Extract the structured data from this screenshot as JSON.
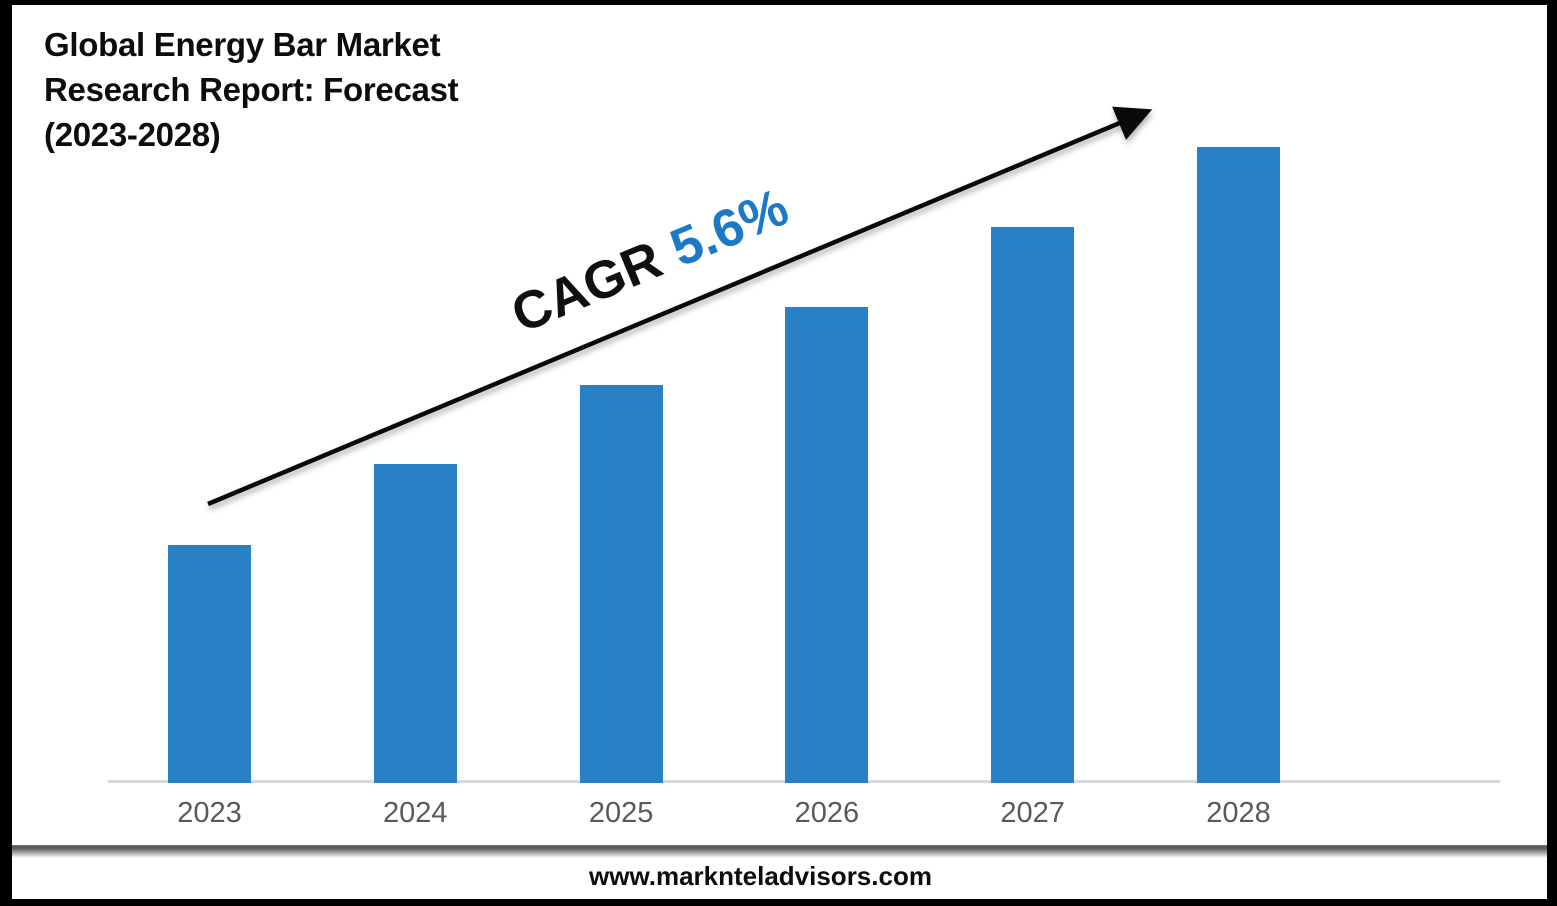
{
  "title": {
    "lines": [
      "Global Energy Bar Market",
      "Research Report: Forecast",
      "(2023-2028)"
    ]
  },
  "cagr": {
    "label": "CAGR",
    "value": "5.6%"
  },
  "footer": {
    "website": "www.marknteladvisors.com"
  },
  "colors": {
    "bar": "#2781C4",
    "cagr_value": "#1B79C8",
    "axis_label": "#5A5A5A",
    "axis_line": "#D9D9D9",
    "arrow": "#0A0A0A",
    "frame_border": "#000000"
  },
  "chart_data": {
    "type": "bar",
    "title": "Global Energy Bar Market Research Report: Forecast (2023-2028)",
    "categories": [
      "2023",
      "2024",
      "2025",
      "2026",
      "2027",
      "2028"
    ],
    "values": [
      238,
      319,
      398,
      476,
      556,
      636
    ],
    "values_note": "No numeric y-axis is shown in the figure; values are relative bar heights in pixels (near-linear growth illustration)",
    "xlabel": "",
    "ylabel": "",
    "ylim": [
      0,
      700
    ],
    "grid": false,
    "legend": false,
    "annotations": [
      "CAGR 5.6%"
    ]
  }
}
